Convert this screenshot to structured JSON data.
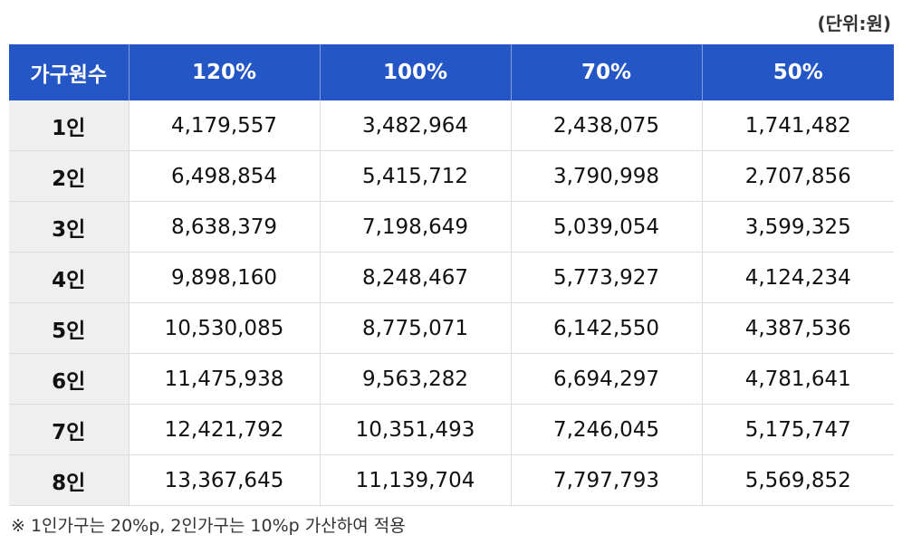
{
  "unit_label": "(단위:원)",
  "table": {
    "headers": [
      "가구원수",
      "120%",
      "100%",
      "70%",
      "50%"
    ],
    "rows": [
      [
        "1인",
        "4,179,557",
        "3,482,964",
        "2,438,075",
        "1,741,482"
      ],
      [
        "2인",
        "6,498,854",
        "5,415,712",
        "3,790,998",
        "2,707,856"
      ],
      [
        "3인",
        "8,638,379",
        "7,198,649",
        "5,039,054",
        "3,599,325"
      ],
      [
        "4인",
        "9,898,160",
        "8,248,467",
        "5,773,927",
        "4,124,234"
      ],
      [
        "5인",
        "10,530,085",
        "8,775,071",
        "6,142,550",
        "4,387,536"
      ],
      [
        "6인",
        "11,475,938",
        "9,563,282",
        "6,694,297",
        "4,781,641"
      ],
      [
        "7인",
        "12,421,792",
        "10,351,493",
        "7,246,045",
        "5,175,747"
      ],
      [
        "8인",
        "13,367,645",
        "11,139,704",
        "7,797,793",
        "5,569,852"
      ]
    ]
  },
  "footnote": "※ 1인가구는 20%p, 2인가구는 10%p 가산하여 적용",
  "colors": {
    "header_bg": "#2457c5",
    "label_col_bg": "#efefef"
  }
}
